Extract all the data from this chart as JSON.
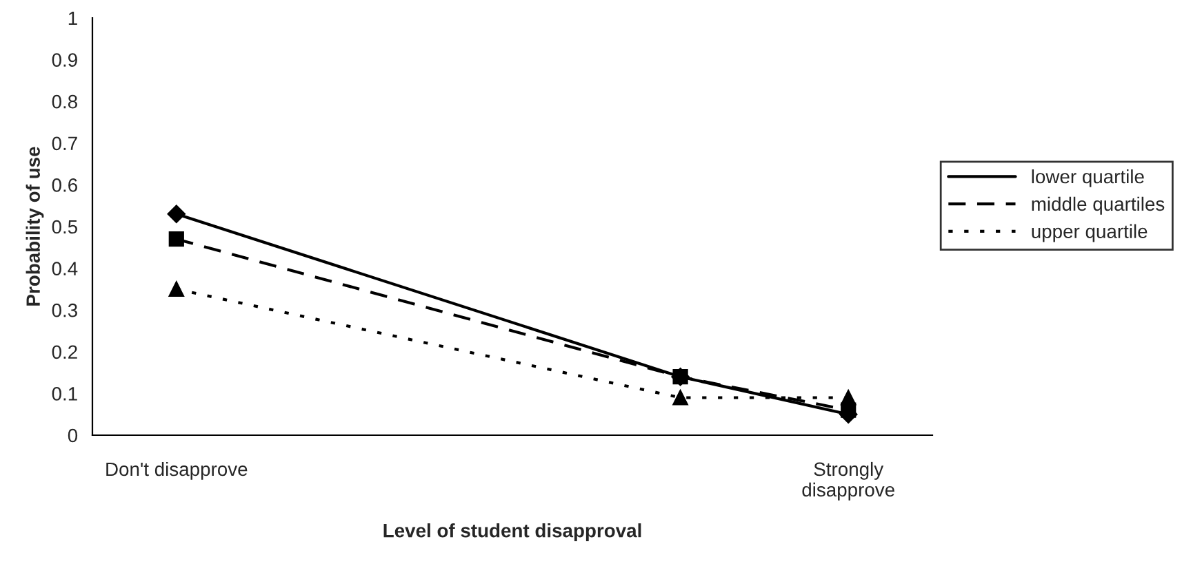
{
  "chart_data": {
    "type": "line",
    "xlabel": "Level of student disapproval",
    "ylabel": "Probability of use",
    "categories": [
      "Don't disapprove",
      null,
      null,
      null,
      "Strongly\ndisapprove"
    ],
    "series": [
      {
        "name": "lower quartile",
        "color": "#000000",
        "marker": "diamond",
        "line_style": "solid",
        "values": [
          0.53,
          null,
          null,
          0.14,
          0.05
        ]
      },
      {
        "name": "middle quartiles",
        "color": "#000000",
        "marker": "square",
        "line_style": "dashed",
        "values": [
          0.47,
          null,
          null,
          0.14,
          0.06
        ]
      },
      {
        "name": "upper quartile",
        "color": "#000000",
        "marker": "triangle",
        "line_style": "dotted",
        "values": [
          0.35,
          null,
          null,
          0.09,
          0.09
        ]
      }
    ],
    "ylim": [
      0,
      1
    ],
    "yticks": [
      0,
      0.1,
      0.2,
      0.3,
      0.4,
      0.5,
      0.6,
      0.7,
      0.8,
      0.9,
      1
    ],
    "grid": false,
    "legend": "right"
  }
}
